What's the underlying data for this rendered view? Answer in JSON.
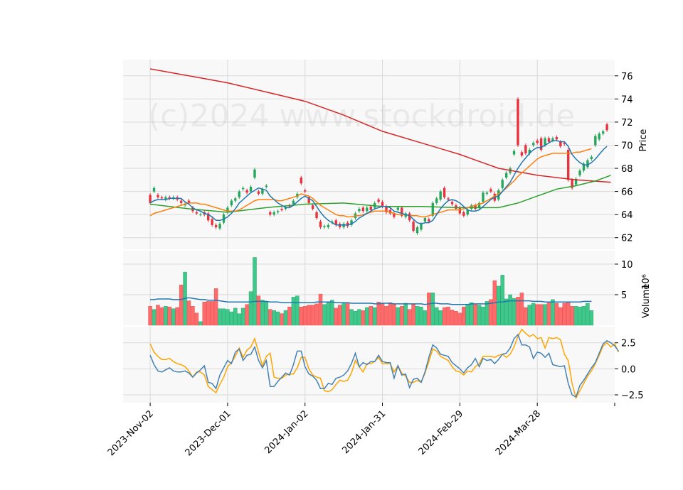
{
  "chart_data": {
    "type": "candlestick",
    "watermark": "(c)2024 www.stockdroid.de",
    "colors": {
      "up": "#26a65b",
      "down": "#e8313c",
      "up_volume": "#3ec98a",
      "down_volume": "#ff6b6b",
      "sma_fast": "#1f77b4",
      "sma_mid": "#ff7f0e",
      "sma_slow": "#2ca02c",
      "sma_long": "#d62728",
      "macd": "#4682b4",
      "signal": "#ffa500",
      "grid": "#d9d9d9",
      "panel_bg": "#f8f8f8"
    },
    "x_ticks": [
      {
        "label": "2023-Nov-02",
        "index": 0
      },
      {
        "label": "2023-Dec-01",
        "index": 20
      },
      {
        "label": "2024-Jan-02",
        "index": 40
      },
      {
        "label": "2024-Jan-31",
        "index": 60
      },
      {
        "label": "2024-Feb-29",
        "index": 80
      },
      {
        "label": "2024-Mar-28",
        "index": 100
      }
    ],
    "x_range": [
      -7,
      120
    ],
    "price_panel": {
      "ylabel": "Price",
      "ylim": [
        61.0,
        77.4
      ],
      "yticks": [
        62,
        64,
        66,
        68,
        70,
        72,
        74,
        76
      ],
      "close": [
        65.0,
        66.3,
        65.5,
        65.4,
        65.5,
        65.4,
        65.5,
        65.3,
        65.0,
        64.9,
        65.0,
        64.3,
        64.1,
        64.0,
        64.0,
        63.5,
        63.1,
        62.9,
        63.2,
        64.0,
        64.6,
        65.2,
        65.4,
        66.0,
        66.3,
        65.9,
        66.4,
        67.9,
        65.8,
        66.2,
        66.5,
        64.0,
        64.2,
        64.3,
        64.4,
        64.6,
        64.7,
        65.2,
        65.8,
        66.7,
        66.0,
        65.0,
        64.5,
        63.7,
        62.9,
        63.0,
        63.1,
        63.4,
        63.1,
        62.9,
        63.2,
        63.0,
        63.5,
        64.1,
        64.5,
        64.3,
        64.6,
        64.4,
        65.0,
        65.1,
        64.7,
        64.2,
        64.1,
        63.8,
        64.6,
        63.9,
        64.1,
        63.5,
        62.6,
        62.9,
        63.2,
        63.7,
        63.4,
        65.0,
        65.4,
        66.0,
        65.5,
        65.3,
        64.9,
        64.5,
        64.1,
        63.9,
        64.4,
        64.8,
        64.5,
        65.0,
        65.9,
        65.9,
        66.0,
        65.2,
        66.1,
        67.0,
        67.6,
        68.0,
        69.5,
        70.0,
        69.1,
        69.3,
        69.6,
        70.2,
        70.2,
        69.6,
        70.6,
        70.3,
        70.6,
        70.5,
        69.9,
        70.1,
        67.0,
        66.3,
        67.1,
        67.8,
        68.4,
        68.7,
        69.0,
        70.8,
        71.0,
        71.2,
        71.3
      ],
      "open": [
        65.7,
        66.0,
        65.7,
        65.5,
        65.3,
        65.5,
        65.4,
        65.5,
        65.2,
        64.8,
        65.2,
        64.6,
        64.2,
        64.0,
        64.2,
        64.1,
        63.6,
        63.1,
        62.8,
        63.3,
        64.2,
        64.8,
        65.2,
        65.5,
        66.2,
        66.1,
        66.0,
        67.2,
        66.0,
        65.8,
        66.4,
        64.2,
        64.0,
        64.2,
        64.5,
        64.5,
        64.8,
        64.9,
        65.5,
        67.2,
        66.1,
        65.5,
        64.8,
        64.2,
        63.4,
        62.9,
        62.9,
        63.3,
        63.5,
        63.2,
        62.9,
        63.3,
        63.1,
        63.7,
        64.3,
        64.6,
        64.3,
        64.7,
        64.6,
        65.3,
        65.1,
        64.7,
        64.4,
        64.1,
        64.4,
        64.6,
        63.8,
        64.1,
        63.4,
        62.4,
        62.7,
        63.4,
        63.6,
        63.9,
        65.0,
        65.3,
        66.3,
        65.4,
        65.1,
        64.8,
        64.6,
        64.2,
        64.0,
        64.5,
        64.8,
        64.6,
        65.1,
        65.8,
        66.2,
        65.8,
        65.3,
        66.3,
        67.2,
        67.6,
        69.2,
        74.0,
        69.4,
        70.0,
        69.3,
        70.0,
        70.4,
        70.6,
        70.0,
        70.6,
        70.4,
        70.7,
        70.3,
        70.2,
        69.6,
        67.0,
        66.6,
        67.4,
        67.8,
        68.1,
        68.8,
        70.0,
        70.5,
        71.0,
        71.8
      ],
      "sma_fast": [
        65.0,
        65.2,
        65.3,
        65.3,
        65.3,
        65.4,
        65.4,
        65.4,
        65.4,
        65.1,
        64.9,
        64.6,
        64.4,
        64.3,
        64.1,
        64.0,
        63.8,
        63.5,
        63.5,
        63.6,
        63.8,
        64.1,
        64.5,
        65.0,
        65.3,
        65.6,
        65.9,
        66.1,
        66.3,
        66.2,
        66.1,
        65.6,
        65.3,
        65.0,
        64.8,
        64.6,
        64.6,
        64.8,
        65.1,
        65.4,
        65.6,
        65.4,
        65.2,
        64.7,
        64.2,
        63.8,
        63.5,
        63.3,
        63.1,
        63.1,
        63.1,
        63.1,
        63.2,
        63.4,
        63.7,
        63.9,
        64.1,
        64.3,
        64.5,
        64.6,
        64.7,
        64.7,
        64.6,
        64.3,
        64.2,
        64.1,
        64.0,
        63.9,
        63.6,
        63.3,
        63.2,
        63.3,
        63.3,
        63.5,
        64.0,
        64.5,
        64.9,
        65.2,
        65.3,
        65.2,
        65.0,
        64.7,
        64.4,
        64.3,
        64.3,
        64.4,
        64.7,
        65.0,
        65.3,
        65.5,
        65.6,
        66.0,
        66.4,
        66.8,
        67.4,
        68.0,
        68.5,
        68.9,
        69.3,
        69.6,
        69.8,
        69.8,
        70.0,
        70.2,
        70.4,
        70.4,
        70.3,
        70.3,
        69.9,
        69.2,
        68.8,
        68.5,
        68.3,
        68.3,
        68.5,
        68.8,
        69.2,
        69.6,
        69.9
      ],
      "sma_mid": [
        63.9,
        64.1,
        64.2,
        64.3,
        64.4,
        64.5,
        64.6,
        64.7,
        64.8,
        64.9,
        65.0,
        65.0,
        65.0,
        64.9,
        64.9,
        64.8,
        64.7,
        64.6,
        64.5,
        64.4,
        64.3,
        64.3,
        64.3,
        64.4,
        64.6,
        64.8,
        65.0,
        65.2,
        65.3,
        65.3,
        65.3,
        65.3,
        65.3,
        65.2,
        65.2,
        65.3,
        65.4,
        65.5,
        65.6,
        65.8,
        65.7,
        65.6,
        65.4,
        65.1,
        64.8,
        64.6,
        64.4,
        64.2,
        64.0,
        63.9,
        63.9,
        63.8,
        63.8,
        63.9,
        63.9,
        64.0,
        64.1,
        64.2,
        64.3,
        64.3,
        64.3,
        64.3,
        64.2,
        64.1,
        64.0,
        64.0,
        64.0,
        63.9,
        63.9,
        63.9,
        63.8,
        63.8,
        63.9,
        64.0,
        64.1,
        64.2,
        64.3,
        64.4,
        64.4,
        64.4,
        64.4,
        64.5,
        64.6,
        64.7,
        64.8,
        64.9,
        65.0,
        65.2,
        65.4,
        65.6,
        65.8,
        66.0,
        66.3,
        66.6,
        66.9,
        67.3,
        67.6,
        67.9,
        68.2,
        68.5,
        68.8,
        69.0,
        69.1,
        69.2,
        69.3,
        69.3,
        69.3,
        69.3,
        69.3,
        69.3,
        69.4,
        69.4,
        69.5,
        69.6,
        69.7
      ]
    },
    "price_panel_long": {
      "sma_slow_points": [
        [
          0,
          64.9
        ],
        [
          10,
          64.5
        ],
        [
          20,
          64.2
        ],
        [
          30,
          64.6
        ],
        [
          40,
          64.9
        ],
        [
          50,
          65.0
        ],
        [
          60,
          64.7
        ],
        [
          70,
          64.7
        ],
        [
          80,
          64.6
        ],
        [
          90,
          64.6
        ],
        [
          95,
          65.0
        ],
        [
          100,
          65.6
        ],
        [
          105,
          66.2
        ],
        [
          110,
          66.5
        ],
        [
          115,
          66.9
        ],
        [
          119,
          67.4
        ]
      ],
      "sma_long_points": [
        [
          0,
          76.6
        ],
        [
          10,
          76.0
        ],
        [
          20,
          75.4
        ],
        [
          30,
          74.6
        ],
        [
          40,
          73.8
        ],
        [
          50,
          72.6
        ],
        [
          60,
          71.2
        ],
        [
          70,
          70.2
        ],
        [
          80,
          69.2
        ],
        [
          85,
          68.6
        ],
        [
          90,
          68.0
        ],
        [
          100,
          67.4
        ],
        [
          110,
          67.0
        ],
        [
          119,
          66.8
        ]
      ]
    },
    "volume_panel": {
      "ylabel": "Volume",
      "exponent_label": "10⁶",
      "ylim": [
        0,
        12.2
      ],
      "yticks": [
        5,
        10
      ],
      "volume": [
        3.1,
        2.6,
        3.3,
        2.9,
        3.1,
        3.0,
        2.7,
        2.9,
        6.6,
        8.7,
        4.0,
        3.1,
        2.0,
        0.6,
        3.8,
        3.9,
        3.9,
        6.0,
        2.7,
        2.7,
        2.6,
        2.2,
        2.8,
        1.9,
        2.8,
        3.4,
        5.5,
        11.1,
        4.8,
        4.1,
        3.8,
        2.6,
        2.4,
        2.2,
        1.9,
        2.4,
        3.0,
        4.6,
        4.8,
        3.0,
        3.1,
        3.3,
        3.3,
        3.5,
        5.1,
        3.4,
        3.7,
        4.1,
        2.8,
        3.3,
        3.7,
        3.7,
        2.6,
        2.3,
        2.6,
        2.4,
        2.9,
        3.1,
        2.9,
        3.8,
        3.6,
        3.1,
        3.7,
        3.4,
        2.9,
        3.1,
        3.6,
        2.6,
        3.4,
        3.1,
        3.0,
        2.4,
        5.3,
        5.3,
        2.9,
        2.4,
        2.9,
        3.0,
        2.5,
        2.3,
        2.0,
        3.0,
        3.4,
        3.7,
        3.5,
        3.3,
        3.0,
        3.9,
        4.2,
        7.3,
        6.4,
        8.2,
        4.3,
        5.0,
        4.4,
        4.6,
        5.3,
        2.9,
        3.3,
        3.6,
        3.4,
        3.4,
        3.4,
        3.8,
        4.2,
        3.6,
        2.9,
        3.6,
        3.7,
        3.1,
        3.1,
        3.0,
        3.1,
        3.6,
        2.4
      ],
      "volume_sma": [
        4.2,
        4.2,
        4.3,
        4.3,
        4.3,
        4.3,
        4.2,
        4.2,
        4.2,
        4.4,
        4.5,
        4.4,
        4.3,
        4.2,
        4.2,
        4.1,
        4.1,
        4.1,
        4.0,
        3.9,
        3.8,
        3.8,
        3.8,
        3.8,
        3.8,
        3.8,
        3.8,
        3.9,
        3.9,
        3.9,
        3.9,
        3.8,
        3.8,
        3.8,
        3.7,
        3.7,
        3.7,
        3.7,
        3.7,
        3.7,
        3.7,
        3.7,
        3.7,
        3.8,
        3.8,
        3.8,
        3.8,
        3.8,
        3.7,
        3.7,
        3.7,
        3.7,
        3.6,
        3.6,
        3.6,
        3.6,
        3.6,
        3.6,
        3.5,
        3.5,
        3.6,
        3.6,
        3.6,
        3.5,
        3.5,
        3.5,
        3.5,
        3.5,
        3.5,
        3.5,
        3.5,
        3.4,
        3.5,
        3.6,
        3.6,
        3.5,
        3.5,
        3.5,
        3.4,
        3.4,
        3.4,
        3.4,
        3.4,
        3.5,
        3.5,
        3.5,
        3.5,
        3.5,
        3.6,
        3.7,
        3.8,
        3.8,
        3.9,
        4.0,
        4.0,
        4.0,
        4.0,
        4.0,
        4.0,
        3.9,
        3.9,
        3.9,
        3.8,
        3.8,
        3.8,
        3.8,
        3.8,
        3.8,
        3.8,
        3.8,
        3.8,
        3.8,
        3.9,
        3.9,
        3.9
      ]
    },
    "macd_panel": {
      "ylim": [
        -3.25,
        4.05
      ],
      "yticks": [
        -2.5,
        0.0,
        2.5
      ],
      "ytick_labels": [
        "−2.5",
        "0.0",
        "2.5"
      ],
      "macd": [
        1.3,
        0.4,
        -0.2,
        -0.3,
        -0.1,
        0.1,
        -0.2,
        -0.3,
        -0.3,
        -0.2,
        -0.4,
        -0.8,
        -0.4,
        -0.1,
        0.3,
        -1.3,
        -1.4,
        -1.9,
        -0.6,
        0.1,
        0.8,
        0.5,
        1.6,
        1.9,
        0.8,
        1.3,
        1.4,
        2.1,
        0.8,
        0.1,
        0.8,
        -1.7,
        -1.7,
        -1.2,
        -0.8,
        -0.4,
        -0.6,
        0.4,
        1.7,
        1.7,
        0.2,
        -0.5,
        -0.7,
        -1.1,
        -1.9,
        -1.9,
        -1.4,
        -1.5,
        -0.9,
        -0.8,
        -0.6,
        -0.2,
        0.5,
        1.5,
        0.2,
        0.6,
        0.4,
        0.7,
        0.7,
        1.3,
        0.7,
        0.6,
        0.6,
        -0.9,
        0.3,
        -0.6,
        -0.5,
        -1.8,
        -1.0,
        -0.9,
        -1.3,
        -0.3,
        1.1,
        2.3,
        2.0,
        1.4,
        1.3,
        1.2,
        0.6,
        0.3,
        0.0,
        -0.4,
        0.1,
        0.4,
        1.0,
        0.2,
        1.0,
        0.8,
        0.9,
        0.5,
        0.9,
        1.4,
        1.5,
        2.0,
        2.9,
        3.3,
        2.3,
        2.3,
        2.1,
        1.0,
        1.6,
        1.5,
        1.1,
        1.5,
        0.4,
        0.3,
        0.2,
        0.3,
        -1.4,
        -2.5,
        -2.7,
        -1.6,
        -1.1,
        -0.5,
        0.1,
        0.6,
        1.5,
        2.4,
        2.7,
        2.5,
        2.2,
        1.7
      ],
      "signal": [
        2.4,
        1.6,
        1.2,
        0.9,
        0.9,
        1.0,
        0.7,
        0.5,
        0.4,
        0.2,
        -0.2,
        -0.8,
        -0.3,
        -0.3,
        -0.6,
        -1.7,
        -2.0,
        -2.3,
        -1.5,
        -0.8,
        0.2,
        0.6,
        1.2,
        2.0,
        1.1,
        1.8,
        2.1,
        2.9,
        1.6,
        0.3,
        1.2,
        1.5,
        -0.8,
        -0.9,
        -0.9,
        -0.6,
        -0.5,
        -0.5,
        0.1,
        1.1,
        1.1,
        0.0,
        -0.6,
        -0.8,
        -0.9,
        -2.1,
        -2.2,
        -2.0,
        -1.5,
        -1.1,
        -1.2,
        -1.1,
        -0.4,
        0.8,
        0.2,
        -0.3,
        0.5,
        0.5,
        0.7,
        1.1,
        0.5,
        0.5,
        0.5,
        -0.3,
        0.3,
        -0.4,
        -0.7,
        -1.3,
        -1.3,
        -1.1,
        -1.3,
        -0.4,
        0.7,
        1.9,
        1.7,
        1.2,
        1.0,
        0.8,
        0.2,
        -0.2,
        -0.3,
        -0.6,
        -0.2,
        -0.3,
        0.2,
        0.5,
        1.2,
        1.2,
        1.2,
        1.1,
        1.3,
        1.4,
        1.1,
        1.4,
        2.1,
        3.1,
        3.8,
        3.4,
        3.1,
        3.3,
        2.9,
        3.0,
        2.0,
        3.0,
        2.9,
        3.0,
        2.8,
        1.4,
        0.8,
        -1.4,
        -2.8,
        -2.1,
        -1.4,
        -0.7,
        -0.2,
        0.5,
        1.3,
        2.2,
        2.5,
        2.1,
        2.4,
        1.6
      ]
    }
  }
}
